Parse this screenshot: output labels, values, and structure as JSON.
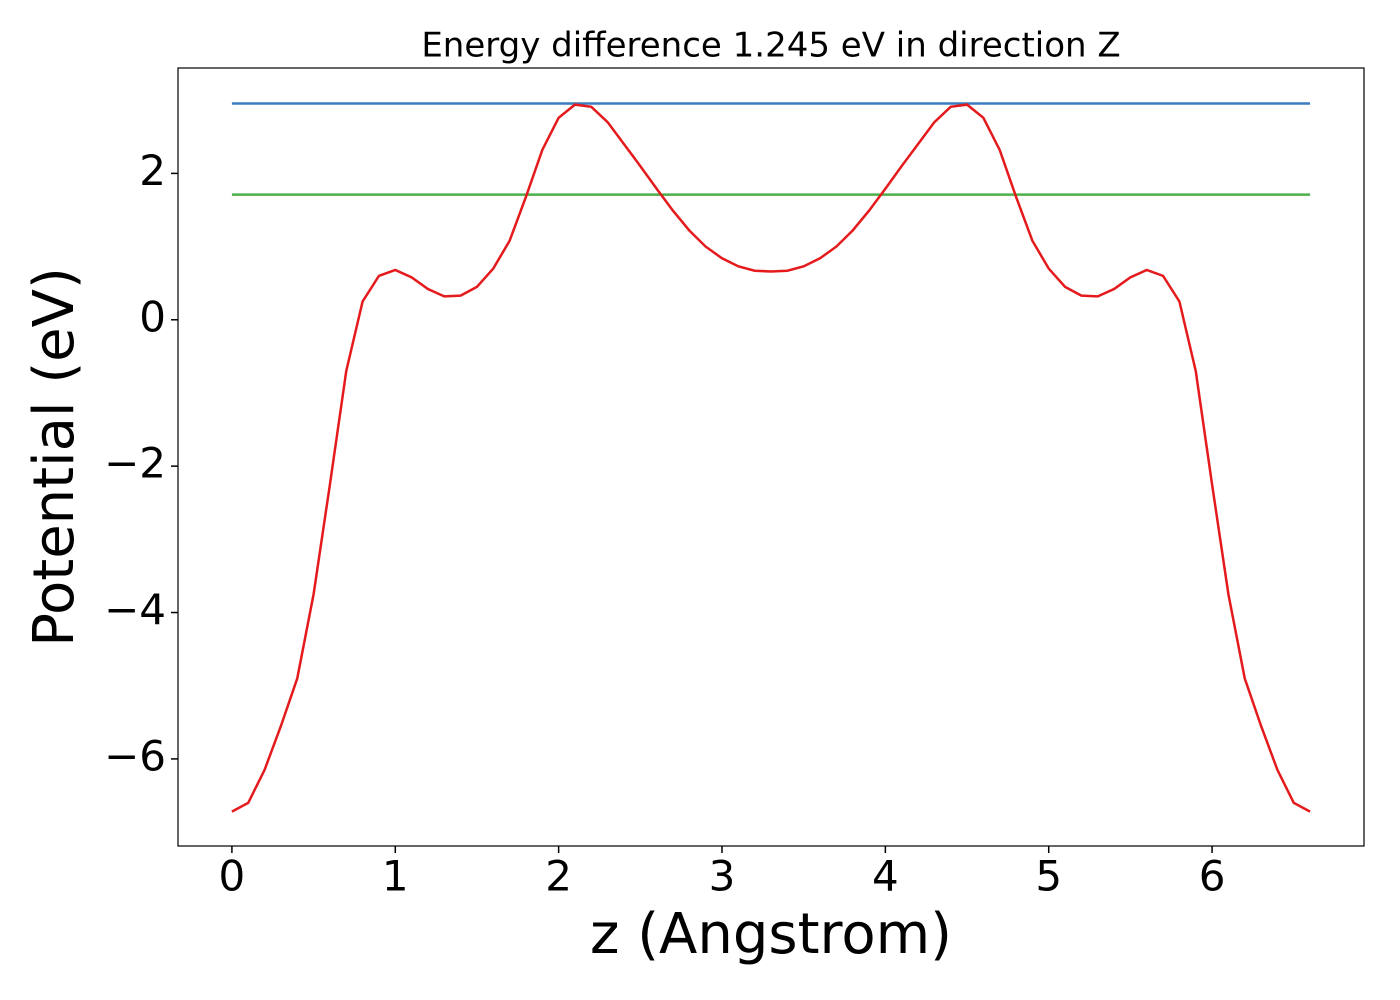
{
  "chart_data": {
    "type": "line",
    "title": "Energy difference 1.245 eV in direction Z",
    "xlabel": "z (Angstrom)",
    "ylabel": "Potential (eV)",
    "xlim": [
      -0.33,
      6.93
    ],
    "ylim": [
      -7.19,
      3.44
    ],
    "xticks": [
      0,
      1,
      2,
      3,
      4,
      5,
      6
    ],
    "yticks": [
      {
        "value": -6,
        "label": "−6"
      },
      {
        "value": -4,
        "label": "−4"
      },
      {
        "value": -2,
        "label": "−2"
      },
      0,
      2
    ],
    "series": [
      {
        "color": "#3a7ebf",
        "x": [
          0,
          6.6
        ],
        "values": [
          2.955,
          2.955
        ]
      },
      {
        "color": "#4daf4a",
        "x": [
          0,
          6.6
        ],
        "values": [
          1.71,
          1.71
        ]
      },
      {
        "color": "#e41a1c",
        "x": [
          0,
          0.1,
          0.2,
          0.3,
          0.4,
          0.5,
          0.6,
          0.7,
          0.8,
          0.9,
          1.0,
          1.1,
          1.2,
          1.3,
          1.4,
          1.5,
          1.6,
          1.7,
          1.8,
          1.9,
          2.0,
          2.1,
          2.2,
          2.3,
          2.4,
          2.5,
          2.6,
          2.7,
          2.8,
          2.9,
          3.0,
          3.1,
          3.2,
          3.3,
          3.4,
          3.5,
          3.6,
          3.7,
          3.8,
          3.9,
          4.0,
          4.1,
          4.2,
          4.3,
          4.4,
          4.5,
          4.6,
          4.7,
          4.8,
          4.9,
          5.0,
          5.1,
          5.2,
          5.3,
          5.4,
          5.5,
          5.6,
          5.7,
          5.8,
          5.9,
          6.0,
          6.1,
          6.2,
          6.3,
          6.4,
          6.5,
          6.6
        ],
        "values": [
          -6.72,
          -6.6,
          -6.15,
          -5.55,
          -4.9,
          -3.75,
          -2.25,
          -0.7,
          0.25,
          0.6,
          0.68,
          0.58,
          0.42,
          0.32,
          0.33,
          0.45,
          0.7,
          1.08,
          1.68,
          2.32,
          2.76,
          2.94,
          2.91,
          2.7,
          2.4,
          2.1,
          1.79,
          1.49,
          1.22,
          1.0,
          0.84,
          0.73,
          0.67,
          0.66,
          0.67,
          0.73,
          0.84,
          1.0,
          1.22,
          1.49,
          1.79,
          2.1,
          2.4,
          2.7,
          2.91,
          2.94,
          2.76,
          2.32,
          1.68,
          1.08,
          0.7,
          0.45,
          0.33,
          0.32,
          0.42,
          0.58,
          0.68,
          0.6,
          0.25,
          -0.7,
          -2.25,
          -3.75,
          -4.9,
          -5.55,
          -6.15,
          -6.6,
          -6.72
        ]
      }
    ]
  }
}
